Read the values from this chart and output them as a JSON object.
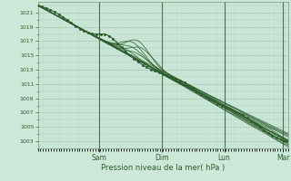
{
  "background_color": "#cce8d8",
  "plot_bg_color": "#cce8d8",
  "grid_minor_color": "#aaccbb",
  "grid_major_color": "#88aa99",
  "line_color": "#2d5e2d",
  "xlabel": "Pression niveau de la mer( hPa )",
  "day_labels": [
    "Sam",
    "Dim",
    "Lun",
    "Mar"
  ],
  "ylim": [
    1002.0,
    1022.5
  ],
  "yticks": [
    1003,
    1005,
    1007,
    1009,
    1011,
    1013,
    1015,
    1017,
    1019,
    1021
  ],
  "xlim": [
    0.0,
    1.0
  ],
  "day_positions": [
    0.245,
    0.495,
    0.745,
    0.98
  ],
  "num_points": 300,
  "figsize": [
    3.2,
    2.0
  ],
  "dpi": 100
}
